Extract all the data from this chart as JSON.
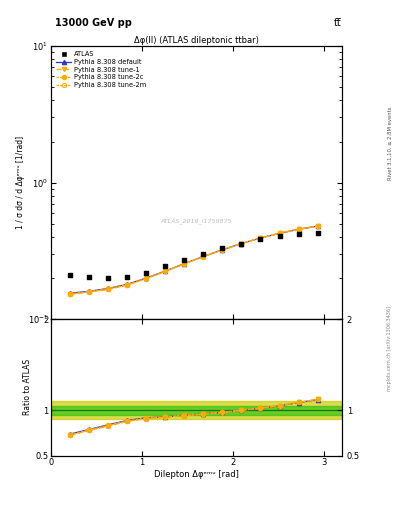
{
  "title_top": "13000 GeV pp",
  "title_right": "tt̅",
  "plot_title": "Δφ(ll) (ATLAS dileptonic ttbar)",
  "xlabel": "Dilepton Δφᵉᵐᵘ [rad]",
  "ylabel_main": "1 / σ dσ / d Δφᵉᵐᵘ [1/rad]",
  "ylabel_ratio": "Ratio to ATLAS",
  "watermark": "ATLAS_2019_I1759875",
  "rivet_label": "Rivet 3.1.10, ≥ 2.8M events",
  "mcplots_label": "mcplots.cern.ch [arXiv:1306.3436]",
  "atlas_data_x": [
    0.2094,
    0.4189,
    0.6283,
    0.8378,
    1.0472,
    1.2566,
    1.4661,
    1.6755,
    1.885,
    2.0944,
    2.3038,
    2.5133,
    2.7227,
    2.9322
  ],
  "atlas_data_y": [
    0.21,
    0.203,
    0.2,
    0.203,
    0.218,
    0.243,
    0.27,
    0.3,
    0.33,
    0.358,
    0.385,
    0.405,
    0.42,
    0.43
  ],
  "pythia_default_x": [
    0.2094,
    0.4189,
    0.6283,
    0.8378,
    1.0472,
    1.2566,
    1.4661,
    1.6755,
    1.885,
    2.0944,
    2.3038,
    2.5133,
    2.7227,
    2.9322
  ],
  "pythia_default_y": [
    0.155,
    0.16,
    0.168,
    0.18,
    0.2,
    0.225,
    0.255,
    0.288,
    0.322,
    0.358,
    0.393,
    0.425,
    0.455,
    0.48
  ],
  "pythia_tune1_x": [
    0.2094,
    0.4189,
    0.6283,
    0.8378,
    1.0472,
    1.2566,
    1.4661,
    1.6755,
    1.885,
    2.0944,
    2.3038,
    2.5133,
    2.7227,
    2.9322
  ],
  "pythia_tune1_y": [
    0.152,
    0.158,
    0.165,
    0.178,
    0.198,
    0.224,
    0.254,
    0.287,
    0.321,
    0.358,
    0.393,
    0.426,
    0.456,
    0.481
  ],
  "pythia_tune2c_x": [
    0.2094,
    0.4189,
    0.6283,
    0.8378,
    1.0472,
    1.2566,
    1.4661,
    1.6755,
    1.885,
    2.0944,
    2.3038,
    2.5133,
    2.7227,
    2.9322
  ],
  "pythia_tune2c_y": [
    0.153,
    0.159,
    0.167,
    0.179,
    0.199,
    0.225,
    0.255,
    0.288,
    0.322,
    0.358,
    0.394,
    0.426,
    0.456,
    0.481
  ],
  "pythia_tune2m_x": [
    0.2094,
    0.4189,
    0.6283,
    0.8378,
    1.0472,
    1.2566,
    1.4661,
    1.6755,
    1.885,
    2.0944,
    2.3038,
    2.5133,
    2.7227,
    2.9322
  ],
  "pythia_tune2m_y": [
    0.153,
    0.158,
    0.166,
    0.178,
    0.198,
    0.224,
    0.254,
    0.287,
    0.322,
    0.358,
    0.393,
    0.426,
    0.456,
    0.481
  ],
  "ratio_default_y": [
    0.738,
    0.788,
    0.84,
    0.887,
    0.917,
    0.926,
    0.944,
    0.96,
    0.976,
    1.0,
    1.021,
    1.049,
    1.083,
    1.116
  ],
  "ratio_tune1_y": [
    0.724,
    0.778,
    0.825,
    0.877,
    0.908,
    0.922,
    0.941,
    0.957,
    0.973,
    1.0,
    1.021,
    1.051,
    1.086,
    1.119
  ],
  "ratio_tune2c_y": [
    0.729,
    0.783,
    0.835,
    0.882,
    0.913,
    0.926,
    0.944,
    0.96,
    0.976,
    1.0,
    1.023,
    1.051,
    1.086,
    1.119
  ],
  "ratio_tune2m_y": [
    0.729,
    0.778,
    0.83,
    0.877,
    0.908,
    0.922,
    0.941,
    0.957,
    0.976,
    1.0,
    1.021,
    1.051,
    1.086,
    1.119
  ],
  "ylim_main": [
    0.1,
    10.0
  ],
  "ylim_ratio": [
    0.5,
    2.0
  ],
  "xlim": [
    0.0,
    3.2
  ],
  "color_atlas": "#000000",
  "color_default": "#3333cc",
  "color_tune1": "#ffaa00",
  "color_tune2c": "#ffaa00",
  "color_tune2m": "#ffaa00",
  "band_green": "#00bb00",
  "band_yellow": "#cccc00"
}
